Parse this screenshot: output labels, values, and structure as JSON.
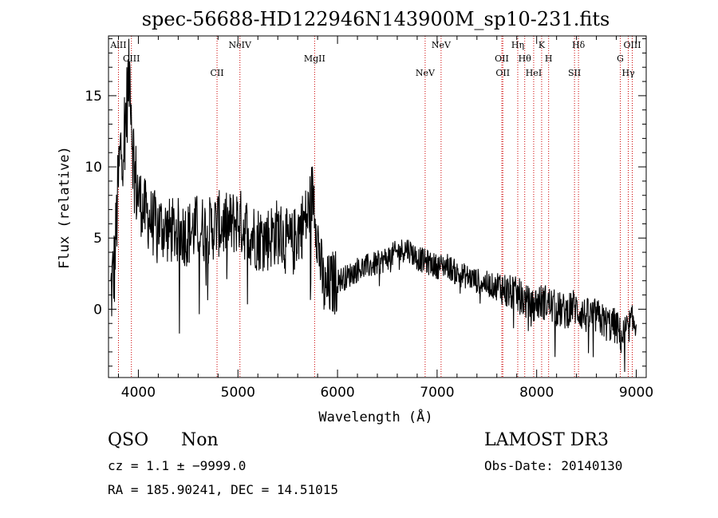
{
  "chart_data": {
    "type": "line",
    "title": "spec-56688-HD122946N143900M_sp10-231.fits",
    "xlabel": "Wavelength (Å)",
    "ylabel": "Flux (relative)",
    "xlim": [
      3700,
      9100
    ],
    "ylim": [
      -4.8,
      19.2
    ],
    "xticks": [
      4000,
      5000,
      6000,
      7000,
      8000,
      9000
    ],
    "yticks": [
      0,
      5,
      10,
      15
    ],
    "series": [
      {
        "name": "spectrum",
        "x": [
          3720,
          3760,
          3800,
          3820,
          3850,
          3880,
          3900,
          3920,
          3940,
          3970,
          4000,
          4050,
          4100,
          4150,
          4200,
          4300,
          4400,
          4500,
          4600,
          4700,
          4800,
          4900,
          5000,
          5100,
          5200,
          5300,
          5400,
          5500,
          5550,
          5600,
          5650,
          5700,
          5740,
          5760,
          5800,
          5850,
          5880,
          5900,
          5950,
          6000,
          6100,
          6200,
          6300,
          6400,
          6500,
          6600,
          6700,
          6800,
          6900,
          7000,
          7100,
          7200,
          7300,
          7400,
          7500,
          7600,
          7650,
          7700,
          7800,
          7850,
          7900,
          7950,
          8000,
          8100,
          8200,
          8300,
          8350,
          8400,
          8500,
          8600,
          8700,
          8800,
          8850,
          8900,
          8950,
          9000
        ],
        "y": [
          1.0,
          3.0,
          9.0,
          11.0,
          12.0,
          14.0,
          16.0,
          16.5,
          12.0,
          9.0,
          8.0,
          7.0,
          6.5,
          6.0,
          6.0,
          5.5,
          5.5,
          5.3,
          5.8,
          5.5,
          6.0,
          5.8,
          6.3,
          5.5,
          5.0,
          5.0,
          5.5,
          4.6,
          4.5,
          5.5,
          6.0,
          6.5,
          8.0,
          8.2,
          5.0,
          2.0,
          1.0,
          1.5,
          1.8,
          2.0,
          2.3,
          2.8,
          3.0,
          3.2,
          3.6,
          4.0,
          4.3,
          3.6,
          3.3,
          3.0,
          3.1,
          2.5,
          2.3,
          2.0,
          1.8,
          1.5,
          1.6,
          1.2,
          1.0,
          0.8,
          0.5,
          0.0,
          0.5,
          0.5,
          0.0,
          -0.2,
          0.3,
          0.0,
          -0.5,
          -0.5,
          -1.0,
          -1.2,
          -2.0,
          -1.5,
          -1.0,
          -1.0
        ]
      }
    ],
    "emission_lines": [
      {
        "label": "AlII",
        "wave": 3800
      },
      {
        "label": "CIII",
        "wave": 3930
      },
      {
        "label": "CII",
        "wave": 4790
      },
      {
        "label": "NeIV",
        "wave": 5020
      },
      {
        "label": "MgII",
        "wave": 5770
      },
      {
        "label": "NeV",
        "wave": 6880
      },
      {
        "label": "NeV",
        "wave": 7040
      },
      {
        "label": "OII",
        "wave": 7650
      },
      {
        "label": "OII",
        "wave": 7660
      },
      {
        "label": "Hη",
        "wave": 7810
      },
      {
        "label": "Hθ",
        "wave": 7880
      },
      {
        "label": "HeI",
        "wave": 7970
      },
      {
        "label": "K",
        "wave": 8050
      },
      {
        "label": "H",
        "wave": 8120
      },
      {
        "label": "SII",
        "wave": 8380
      },
      {
        "label": "Hδ",
        "wave": 8420
      },
      {
        "label": "G",
        "wave": 8840
      },
      {
        "label": "Hγ",
        "wave": 8920
      },
      {
        "label": "OIII",
        "wave": 8960
      }
    ]
  },
  "info": {
    "object_class": "QSO",
    "subclass": "Non",
    "survey": "LAMOST DR3",
    "cz": "cz = 1.1 ± −9999.0",
    "obs_date": "Obs-Date: 20140130",
    "coords": "RA = 185.90241, DEC =  14.51015"
  }
}
